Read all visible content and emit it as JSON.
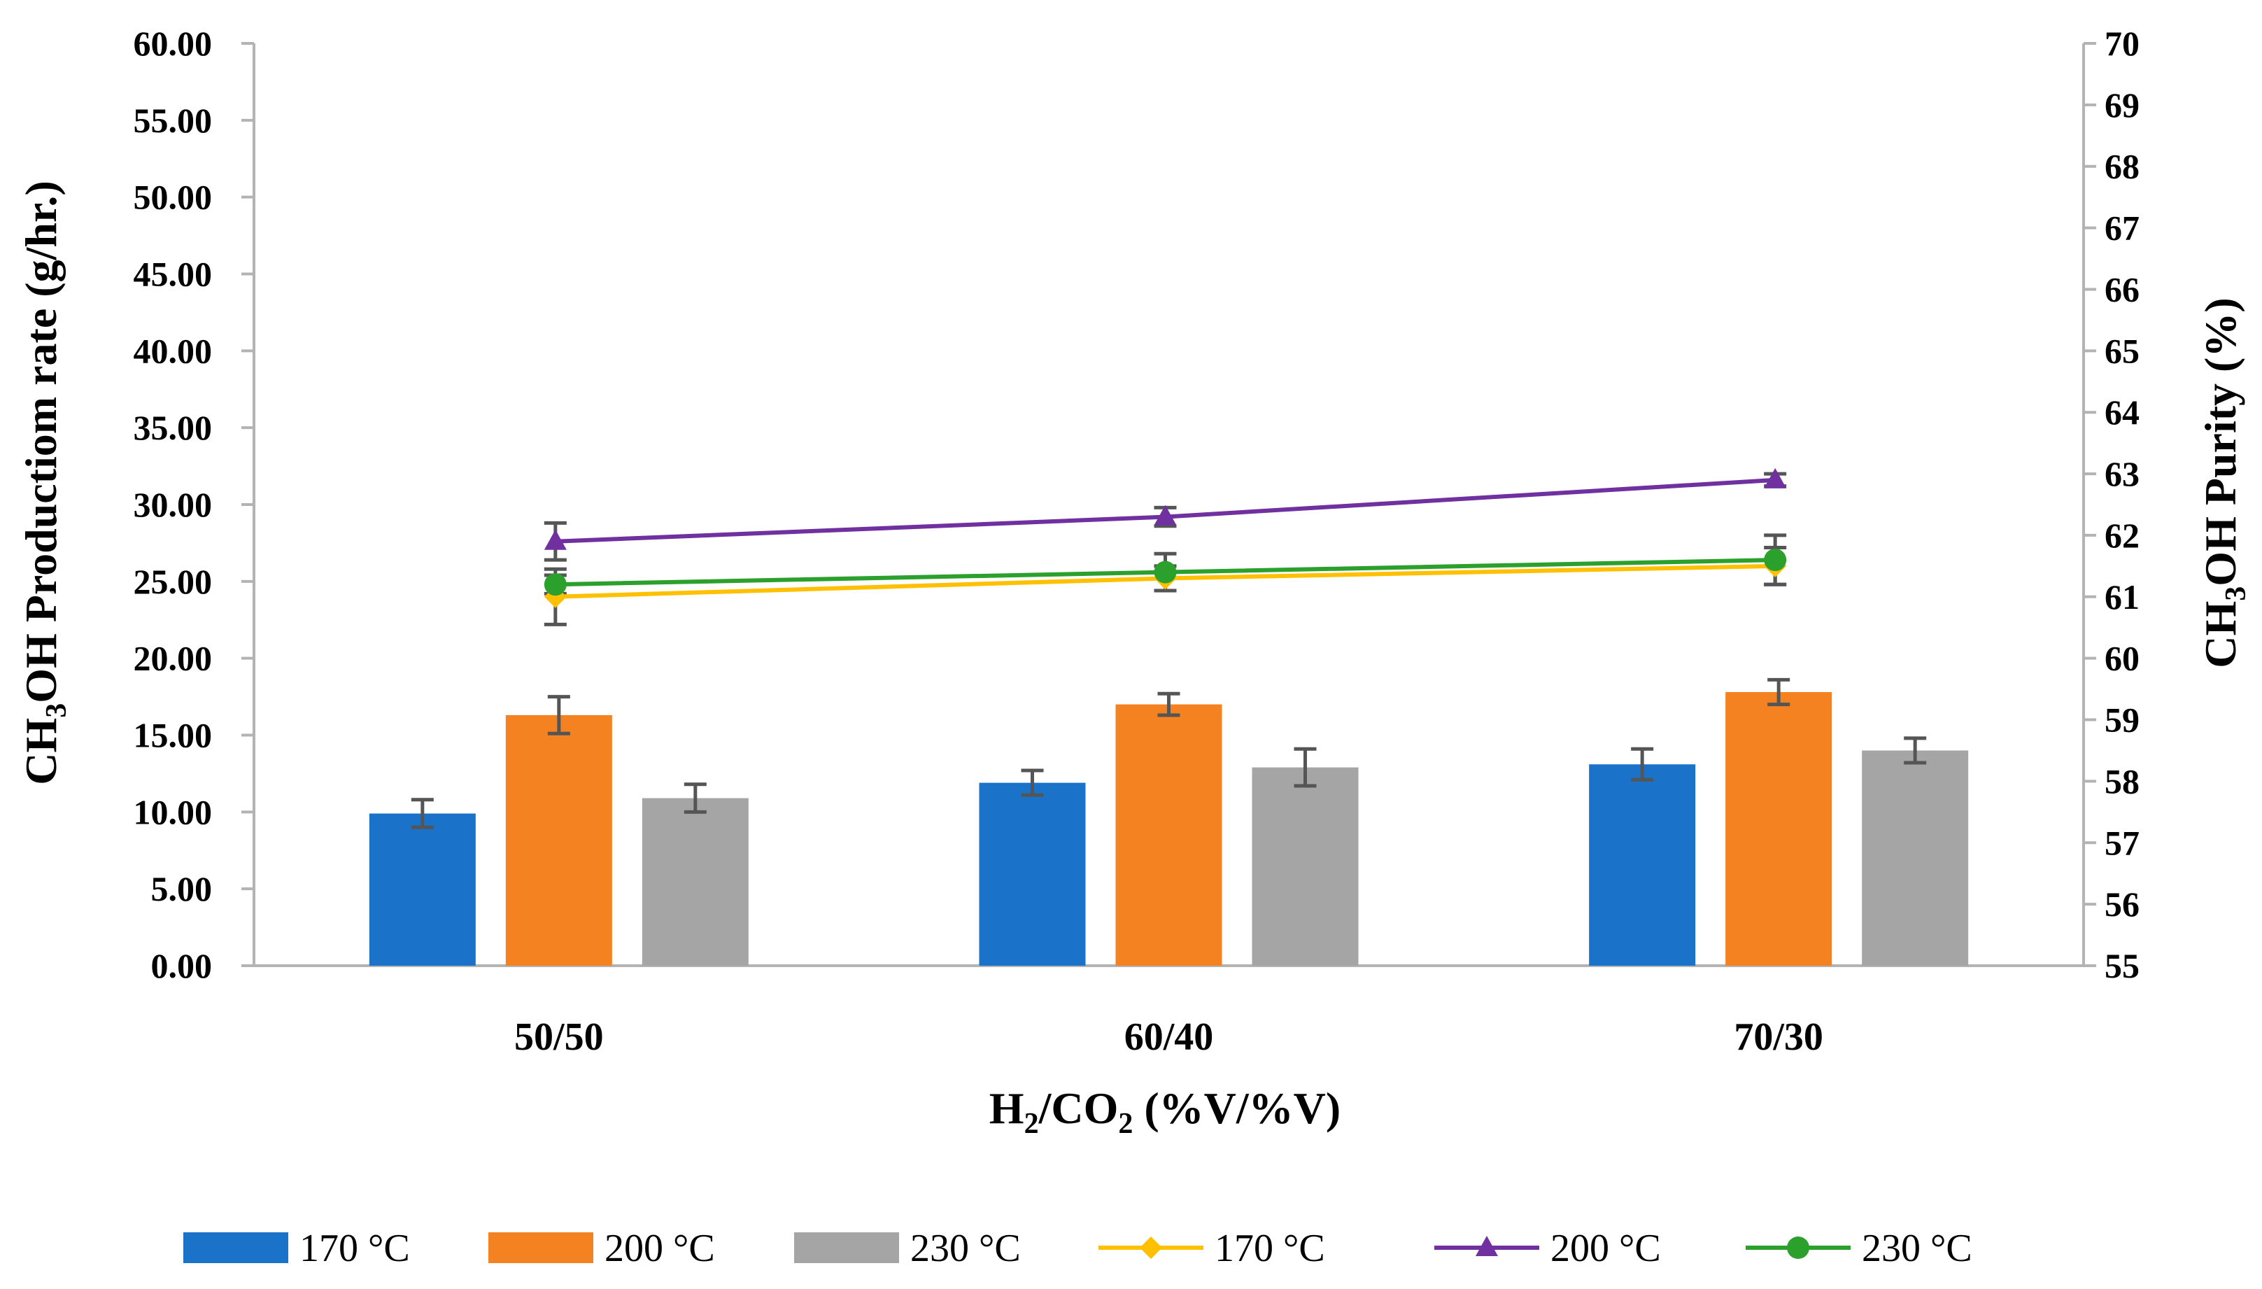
{
  "chart_data": {
    "type": "bar+line (dual axis)",
    "categories": [
      "50/50",
      "60/40",
      "70/30"
    ],
    "xlabel_main": "H",
    "xlabel_sub1": "2",
    "xlabel_mid": "/CO",
    "xlabel_sub2": "2",
    "xlabel_tail": " (%V/%V)",
    "ylabel_left_pre": "CH",
    "ylabel_left_sub": "3",
    "ylabel_left_post": "OH Productiom rate (g/hr.)",
    "ylabel_right_pre": "CH",
    "ylabel_right_sub": "3",
    "ylabel_right_post": "OH Purity  (%)",
    "ylim_left": [
      0,
      60
    ],
    "ylim_right": [
      55,
      70
    ],
    "yticks_left": [
      "0.00",
      "5.00",
      "10.00",
      "15.00",
      "20.00",
      "25.00",
      "30.00",
      "35.00",
      "40.00",
      "45.00",
      "50.00",
      "55.00",
      "60.00"
    ],
    "yticks_right": [
      "55",
      "56",
      "57",
      "58",
      "59",
      "60",
      "61",
      "62",
      "63",
      "64",
      "65",
      "66",
      "67",
      "68",
      "69",
      "70"
    ],
    "bar_series": [
      {
        "name": "170 °C",
        "color": "#1a73c8",
        "values": [
          9.9,
          11.9,
          13.1
        ],
        "errors": [
          0.9,
          0.8,
          1.0
        ]
      },
      {
        "name": "200  °C",
        "color": "#f58220",
        "values": [
          16.3,
          17.0,
          17.8
        ],
        "errors": [
          1.2,
          0.7,
          0.8
        ]
      },
      {
        "name": "230  °C",
        "color": "#a5a5a5",
        "values": [
          10.9,
          12.9,
          14.0
        ],
        "errors": [
          0.9,
          1.2,
          0.8
        ]
      }
    ],
    "line_series": [
      {
        "name": "170  °C",
        "color": "#ffc000",
        "marker": "diamond",
        "values": [
          61.0,
          61.3,
          61.5
        ],
        "errors": [
          0.45,
          0.2,
          0.3
        ]
      },
      {
        "name": "200  °C",
        "color": "#7030a0",
        "marker": "triangle",
        "values": [
          61.9,
          62.3,
          62.9
        ],
        "errors": [
          0.3,
          0.15,
          0.1
        ]
      },
      {
        "name": "230  °C",
        "color": "#2ca02c",
        "marker": "circle",
        "values": [
          61.2,
          61.4,
          61.6
        ],
        "errors": [
          0.15,
          0.3,
          0.4
        ]
      }
    ],
    "legend_position": "bottom",
    "grid": false
  }
}
